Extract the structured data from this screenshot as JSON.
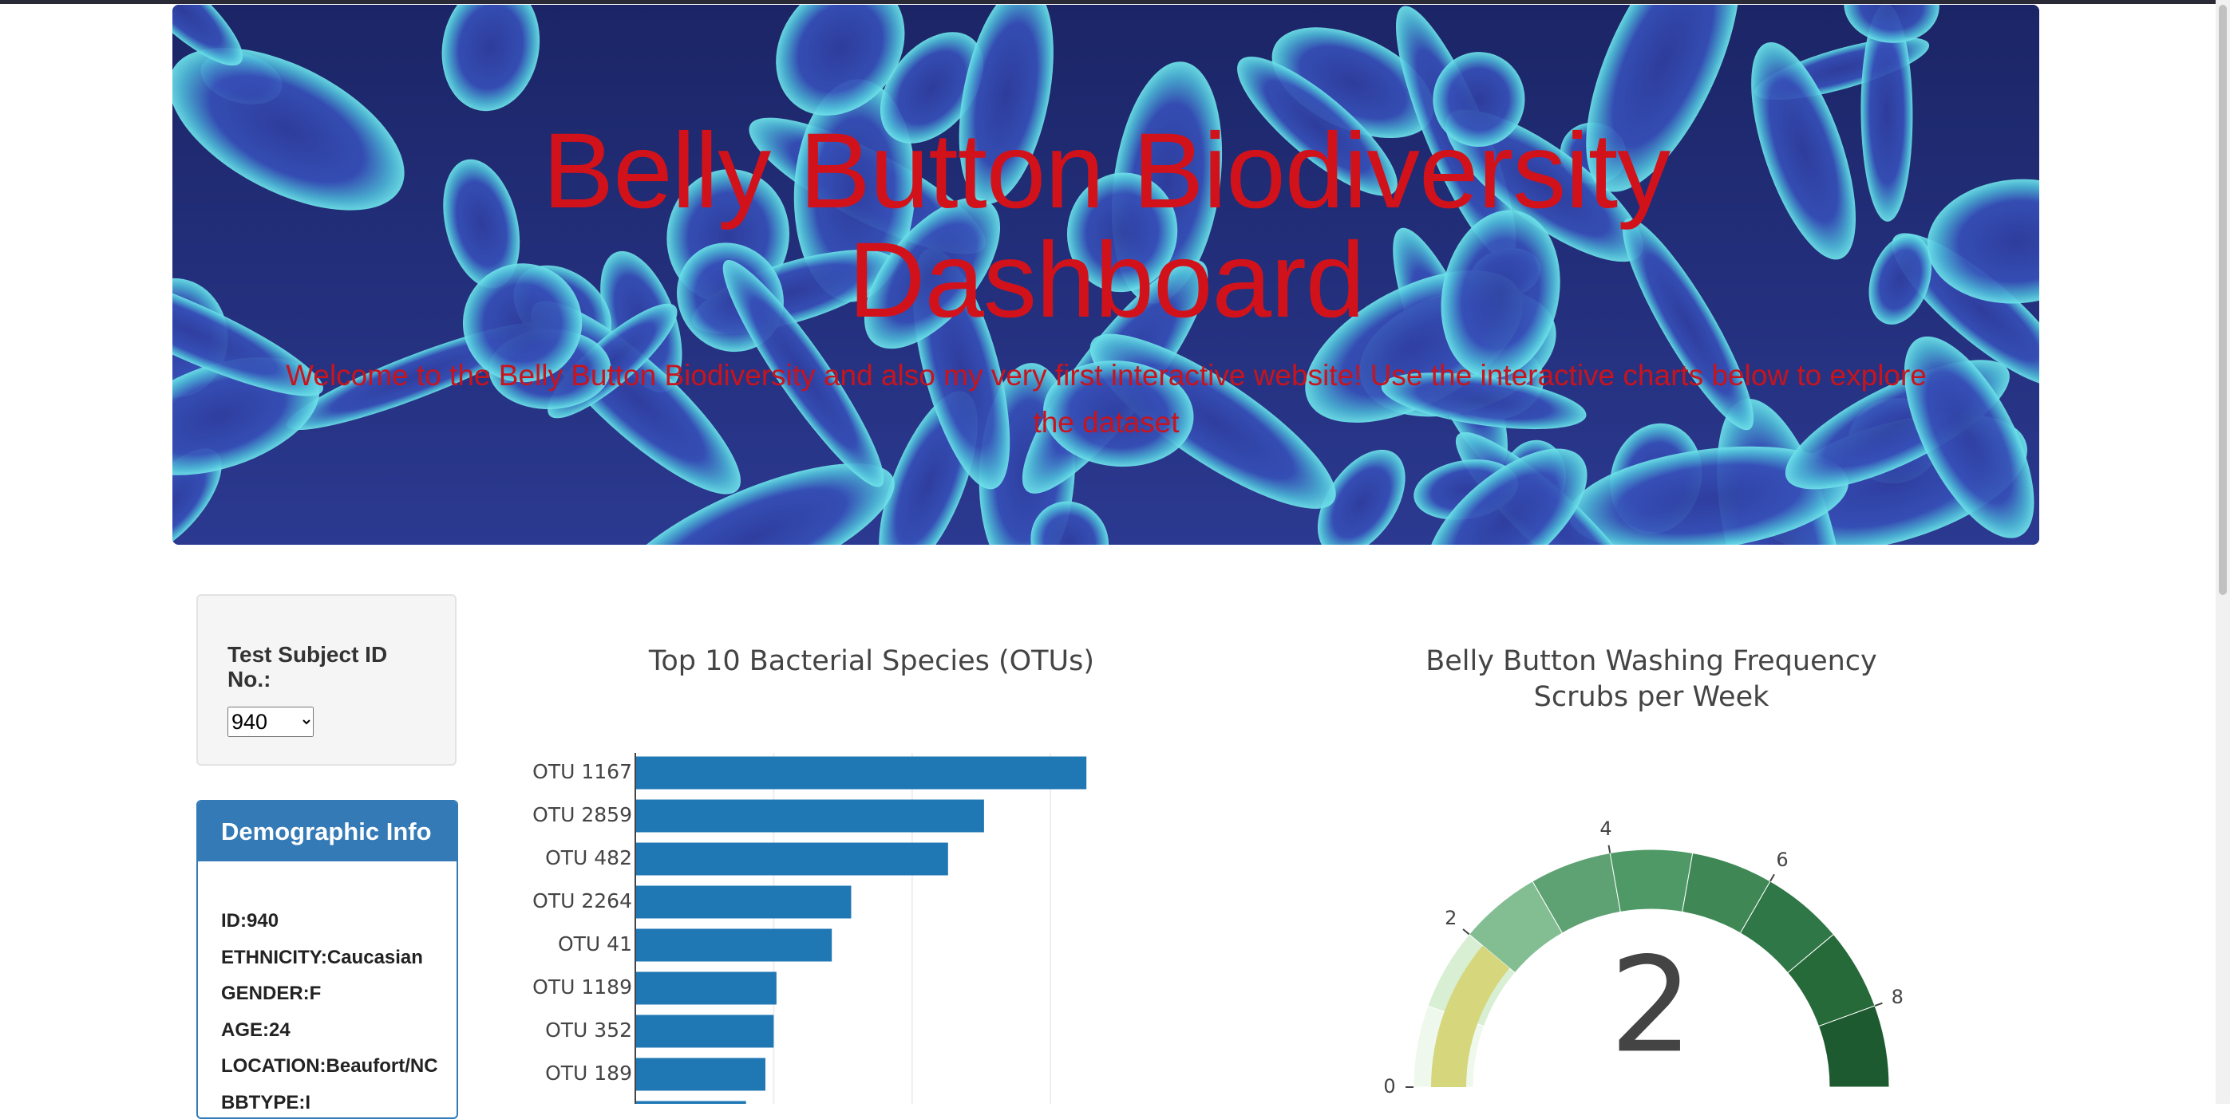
{
  "header": {
    "title": "Belly Button Biodiversity Dashboard",
    "subtitle": "Welcome to the Belly Button Biodiversity and also my very first interactive website! Use the interactive charts below to explore the dataset"
  },
  "selector": {
    "label": "Test Subject ID No.:",
    "selected": "940"
  },
  "demographics": {
    "title": "Demographic Info",
    "rows": [
      "ID:940",
      "ETHNICITY:Caucasian",
      "GENDER:F",
      "AGE:24",
      "LOCATION:Beaufort/NC",
      "BBTYPE:I"
    ]
  },
  "chart_data": [
    {
      "type": "hbar",
      "title": "Top 10 Bacterial Species (OTUs)",
      "categories": [
        "OTU 1167",
        "OTU 2859",
        "OTU 482",
        "OTU 2264",
        "OTU 41",
        "OTU 1189",
        "OTU 352",
        "OTU 189",
        null
      ],
      "values": [
        163,
        126,
        113,
        78,
        71,
        51,
        50,
        47,
        40
      ],
      "color": "#1f77b4",
      "xlim": [
        0,
        171.6
      ],
      "xticks": [
        0,
        50,
        100,
        150
      ],
      "grid": true
    },
    {
      "type": "gauge",
      "title": "Belly Button Washing Frequency",
      "subtitle": "Scrubs per Week",
      "value": 2,
      "range": [
        0,
        9
      ],
      "ticks": [
        0,
        2,
        4,
        6,
        8
      ],
      "bar_color": "#d6d67c",
      "step_colors": [
        "#eff8ec",
        "#d8efd3",
        "#83be93",
        "#5ea173",
        "#4f9966",
        "#3f8856",
        "#2f7746",
        "#276a3a",
        "#1e5a2f"
      ]
    }
  ]
}
